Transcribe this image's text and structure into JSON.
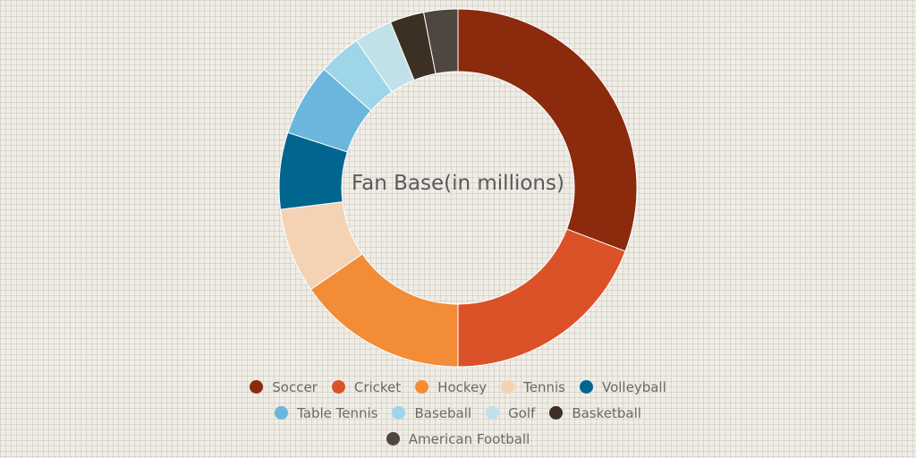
{
  "chart_data": {
    "type": "pie",
    "title": "Fan Base(in millions)",
    "categories": [
      "Soccer",
      "Cricket",
      "Hockey",
      "Tennis",
      "Volleyball",
      "Table Tennis",
      "Baseball",
      "Golf",
      "Basketball",
      "American Football"
    ],
    "values": [
      4000,
      2500,
      2000,
      1000,
      900,
      850,
      500,
      450,
      400,
      400
    ],
    "colors": [
      "#8b2a0d",
      "#db5128",
      "#f28c36",
      "#f3d3b4",
      "#00668f",
      "#6bb6dc",
      "#9ed5e8",
      "#c1e1e8",
      "#3b3023",
      "#4f4640"
    ],
    "legend_position": "bottom",
    "donut": true
  }
}
